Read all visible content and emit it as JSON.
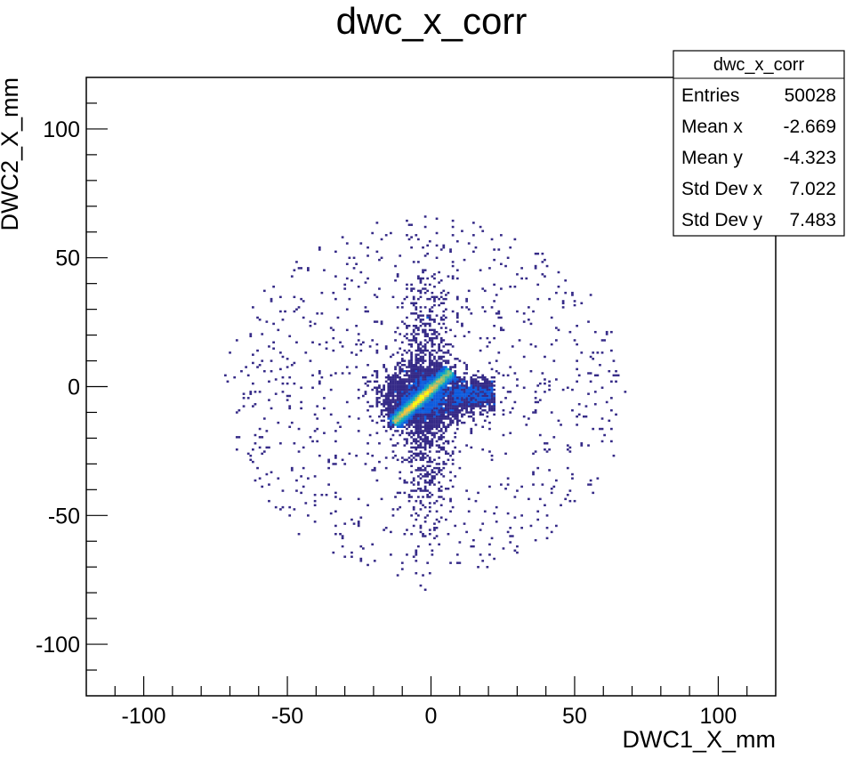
{
  "chart_data": {
    "type": "heatmap",
    "title": "dwc_x_corr",
    "xlabel": "DWC1_X_mm",
    "ylabel": "DWC2_X_mm",
    "xlim": [
      -120,
      120
    ],
    "ylim": [
      -120,
      120
    ],
    "xticks": [
      -100,
      -50,
      0,
      50,
      100
    ],
    "yticks": [
      -100,
      -50,
      0,
      50,
      100
    ],
    "xtick_labels": [
      "-100",
      "-50",
      "0",
      "50",
      "100"
    ],
    "ytick_labels": [
      "-100",
      "-50",
      "0",
      "50",
      "100"
    ],
    "grid": false,
    "legend": "none",
    "colormap": [
      "#352a87",
      "#0f5cdd",
      "#1481d6",
      "#06a4ca",
      "#2eb7a4",
      "#87bf77",
      "#d1bb59",
      "#fec832",
      "#f9fb0e"
    ],
    "stats_box": {
      "title": "dwc_x_corr",
      "position": "top-right",
      "rows": [
        {
          "label": "Entries",
          "value": "50028"
        },
        {
          "label": "Mean x",
          "value": "-2.669"
        },
        {
          "label": "Mean y",
          "value": "-4.323"
        },
        {
          "label": "Std Dev x",
          "value": "7.022"
        },
        {
          "label": "Std Dev y",
          "value": "7.483"
        }
      ]
    },
    "distribution": {
      "entries": 50028,
      "core": {
        "x_range": [
          -13,
          7
        ],
        "slope": 1.0,
        "width": 1.6,
        "peak": [
          -4,
          -4
        ]
      },
      "halo": {
        "center": [
          -2,
          -4
        ],
        "radius": 70
      }
    }
  }
}
